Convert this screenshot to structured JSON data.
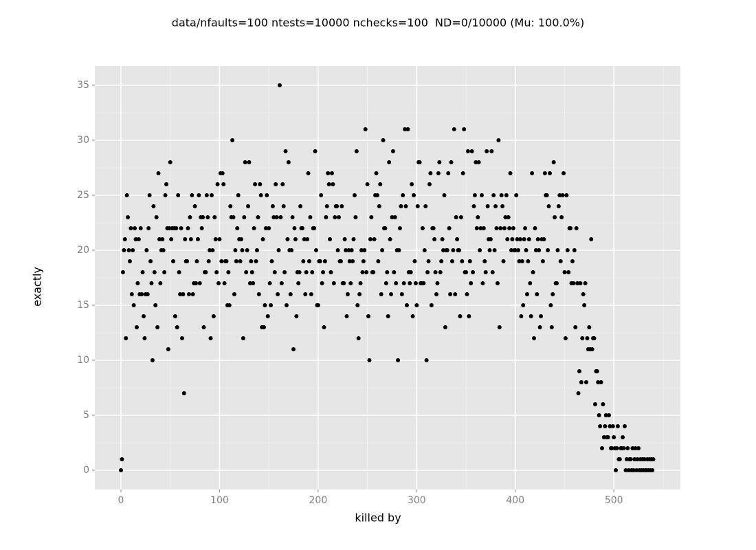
{
  "chart_data": {
    "type": "scatter",
    "title": "data/nfaults=100 ntests=10000 nchecks=100  ND=0/10000 (Mu: 100.0%)",
    "x_label": "killed by",
    "y_label": "exactly",
    "xlim": [
      -26.5,
      567.5
    ],
    "ylim": [
      -1.75,
      36.75
    ],
    "xticks": [
      0,
      100,
      200,
      300,
      400,
      500
    ],
    "yticks": [
      0,
      5,
      10,
      15,
      20,
      25,
      30,
      35
    ],
    "grid": true,
    "color": "#000000",
    "x": [
      0,
      1,
      2,
      3,
      4,
      5,
      6,
      7,
      8,
      9,
      10,
      11,
      12,
      13,
      14,
      15,
      16,
      17,
      18,
      19,
      20,
      21,
      22,
      23,
      24,
      25,
      26,
      27,
      28,
      29,
      30,
      31,
      32,
      33,
      34,
      35,
      36,
      37,
      38,
      39,
      40,
      41,
      42,
      43,
      44,
      45,
      46,
      47,
      48,
      49,
      50,
      51,
      52,
      53,
      54,
      55,
      56,
      57,
      58,
      59,
      60,
      61,
      62,
      63,
      64,
      65,
      66,
      67,
      68,
      69,
      70,
      71,
      72,
      73,
      74,
      75,
      76,
      77,
      78,
      79,
      80,
      81,
      82,
      83,
      84,
      85,
      86,
      87,
      88,
      89,
      90,
      91,
      92,
      93,
      94,
      95,
      96,
      97,
      98,
      99,
      100,
      101,
      102,
      103,
      104,
      105,
      106,
      107,
      108,
      109,
      110,
      111,
      112,
      113,
      114,
      115,
      116,
      117,
      118,
      119,
      120,
      121,
      122,
      123,
      124,
      125,
      126,
      127,
      128,
      129,
      130,
      131,
      132,
      133,
      134,
      135,
      136,
      137,
      138,
      139,
      140,
      141,
      142,
      143,
      144,
      145,
      146,
      147,
      148,
      149,
      150,
      151,
      152,
      153,
      154,
      155,
      156,
      157,
      158,
      159,
      160,
      161,
      162,
      163,
      164,
      165,
      166,
      167,
      168,
      169,
      170,
      171,
      172,
      173,
      174,
      175,
      176,
      177,
      178,
      179,
      180,
      181,
      182,
      183,
      184,
      185,
      186,
      187,
      188,
      189,
      190,
      191,
      192,
      193,
      194,
      195,
      196,
      197,
      198,
      199,
      200,
      201,
      202,
      203,
      204,
      205,
      206,
      207,
      208,
      209,
      210,
      211,
      212,
      213,
      214,
      215,
      216,
      217,
      218,
      219,
      220,
      221,
      222,
      223,
      224,
      225,
      226,
      227,
      228,
      229,
      230,
      231,
      232,
      233,
      234,
      235,
      236,
      237,
      238,
      239,
      240,
      241,
      242,
      243,
      244,
      245,
      246,
      247,
      248,
      249,
      250,
      251,
      252,
      253,
      254,
      255,
      256,
      257,
      258,
      259,
      260,
      261,
      262,
      263,
      264,
      265,
      266,
      267,
      268,
      269,
      270,
      271,
      272,
      273,
      274,
      275,
      276,
      277,
      278,
      279,
      280,
      281,
      282,
      283,
      284,
      285,
      286,
      287,
      288,
      289,
      290,
      291,
      292,
      293,
      294,
      295,
      296,
      297,
      298,
      299,
      300,
      301,
      302,
      303,
      304,
      305,
      306,
      307,
      308,
      309,
      310,
      311,
      312,
      313,
      314,
      315,
      316,
      317,
      318,
      319,
      320,
      321,
      322,
      323,
      324,
      325,
      326,
      327,
      328,
      329,
      330,
      331,
      332,
      333,
      334,
      335,
      336,
      337,
      338,
      339,
      340,
      341,
      342,
      343,
      344,
      345,
      346,
      347,
      348,
      349,
      350,
      351,
      352,
      353,
      354,
      355,
      356,
      357,
      358,
      359,
      360,
      361,
      362,
      363,
      364,
      365,
      366,
      367,
      368,
      369,
      370,
      371,
      372,
      373,
      374,
      375,
      376,
      377,
      378,
      379,
      380,
      381,
      382,
      383,
      384,
      385,
      386,
      387,
      388,
      389,
      390,
      391,
      392,
      393,
      394,
      395,
      396,
      397,
      398,
      399,
      400,
      401,
      402,
      403,
      404,
      405,
      406,
      407,
      408,
      409,
      410,
      411,
      412,
      413,
      414,
      415,
      416,
      417,
      418,
      419,
      420,
      421,
      422,
      423,
      424,
      425,
      426,
      427,
      428,
      429,
      430,
      431,
      432,
      433,
      434,
      435,
      436,
      437,
      438,
      439,
      440,
      441,
      442,
      443,
      444,
      445,
      446,
      447,
      448,
      449,
      450,
      451,
      452,
      453,
      454,
      455,
      456,
      457,
      458,
      459,
      460,
      461,
      462,
      463,
      464,
      465,
      466,
      467,
      468,
      469,
      470,
      471,
      472,
      473,
      474,
      475,
      476,
      477,
      478,
      479,
      480,
      481,
      482,
      483,
      484,
      485,
      486,
      487,
      488,
      489,
      490,
      491,
      492,
      493,
      494,
      495,
      496,
      497,
      498,
      499,
      500,
      501,
      502,
      503,
      504,
      505,
      506,
      507,
      508,
      509,
      510,
      511,
      512,
      513,
      514,
      515,
      516,
      517,
      518,
      519,
      520,
      521,
      522,
      523,
      524,
      525,
      526,
      527,
      528,
      529,
      530,
      531,
      532,
      533,
      534,
      535,
      536,
      537,
      538,
      539,
      540
    ],
    "values": [
      0,
      1,
      18,
      20,
      21,
      12,
      25,
      23,
      20,
      19,
      22,
      16,
      20,
      15,
      22,
      21,
      13,
      17,
      21,
      16,
      22,
      16,
      18,
      14,
      12,
      16,
      20,
      16,
      22,
      25,
      19,
      17,
      10,
      24,
      18,
      15,
      23,
      13,
      27,
      21,
      17,
      20,
      21,
      20,
      18,
      25,
      26,
      22,
      11,
      22,
      28,
      21,
      22,
      19,
      22,
      14,
      22,
      13,
      25,
      18,
      16,
      22,
      12,
      16,
      7,
      21,
      19,
      19,
      22,
      16,
      23,
      21,
      25,
      16,
      17,
      24,
      17,
      19,
      21,
      25,
      17,
      23,
      22,
      23,
      13,
      18,
      18,
      25,
      23,
      19,
      20,
      12,
      25,
      20,
      14,
      23,
      21,
      18,
      26,
      17,
      21,
      27,
      19,
      27,
      26,
      17,
      19,
      19,
      15,
      18,
      15,
      24,
      23,
      30,
      23,
      16,
      20,
      19,
      22,
      25,
      21,
      19,
      21,
      20,
      12,
      23,
      28,
      18,
      20,
      24,
      28,
      17,
      19,
      18,
      17,
      22,
      26,
      19,
      20,
      23,
      16,
      26,
      25,
      13,
      21,
      13,
      15,
      22,
      25,
      14,
      22,
      17,
      15,
      19,
      24,
      23,
      18,
      26,
      23,
      16,
      20,
      35,
      23,
      17,
      26,
      24,
      18,
      29,
      15,
      21,
      28,
      20,
      16,
      20,
      23,
      11,
      22,
      21,
      14,
      18,
      17,
      18,
      24,
      22,
      22,
      19,
      21,
      16,
      18,
      21,
      27,
      19,
      23,
      16,
      18,
      22,
      22,
      29,
      20,
      15,
      15,
      19,
      19,
      25,
      17,
      18,
      13,
      19,
      23,
      24,
      27,
      26,
      21,
      18,
      27,
      26,
      17,
      23,
      24,
      24,
      20,
      23,
      19,
      19,
      24,
      17,
      17,
      21,
      20,
      14,
      16,
      20,
      19,
      17,
      20,
      19,
      21,
      25,
      23,
      29,
      15,
      12,
      16,
      17,
      20,
      18,
      19,
      20,
      31,
      18,
      26,
      14,
      10,
      21,
      23,
      18,
      18,
      21,
      25,
      27,
      25,
      19,
      24,
      26,
      16,
      20,
      30,
      22,
      22,
      17,
      18,
      14,
      28,
      21,
      16,
      23,
      29,
      18,
      23,
      17,
      20,
      10,
      20,
      22,
      24,
      16,
      25,
      17,
      31,
      24,
      15,
      31,
      18,
      17,
      18,
      26,
      14,
      25,
      19,
      17,
      15,
      24,
      28,
      28,
      17,
      17,
      22,
      17,
      20,
      24,
      10,
      18,
      19,
      26,
      27,
      15,
      22,
      22,
      21,
      18,
      16,
      17,
      27,
      28,
      18,
      19,
      21,
      20,
      25,
      13,
      20,
      20,
      27,
      22,
      16,
      28,
      19,
      20,
      31,
      16,
      23,
      21,
      20,
      20,
      14,
      23,
      19,
      27,
      31,
      18,
      18,
      16,
      29,
      14,
      19,
      17,
      29,
      18,
      24,
      25,
      28,
      22,
      23,
      28,
      20,
      22,
      25,
      17,
      22,
      19,
      18,
      29,
      24,
      21,
      20,
      21,
      29,
      18,
      25,
      20,
      24,
      22,
      17,
      30,
      13,
      22,
      25,
      24,
      19,
      22,
      23,
      25,
      21,
      23,
      22,
      27,
      20,
      21,
      22,
      20,
      20,
      25,
      21,
      20,
      19,
      21,
      14,
      19,
      15,
      21,
      22,
      20,
      16,
      19,
      21,
      17,
      14,
      27,
      18,
      12,
      22,
      20,
      16,
      21,
      20,
      13,
      14,
      21,
      19,
      21,
      27,
      25,
      25,
      20,
      24,
      27,
      15,
      13,
      16,
      28,
      23,
      17,
      17,
      20,
      24,
      25,
      19,
      23,
      25,
      27,
      18,
      12,
      25,
      20,
      18,
      22,
      22,
      17,
      19,
      17,
      20,
      13,
      22,
      17,
      7,
      9,
      17,
      8,
      12,
      16,
      15,
      17,
      8,
      12,
      11,
      13,
      11,
      21,
      11,
      12,
      12,
      6,
      9,
      9,
      8,
      5,
      4,
      8,
      2,
      6,
      3,
      4,
      5,
      3,
      3,
      5,
      4,
      2,
      2,
      4,
      3,
      2,
      0,
      2,
      4,
      1,
      1,
      2,
      2,
      3,
      2,
      4,
      0,
      1,
      2,
      0,
      1,
      1,
      0,
      2,
      0,
      1,
      2,
      0,
      1,
      2,
      0,
      1,
      0,
      1,
      0,
      1,
      0,
      0,
      1,
      0,
      1,
      0,
      1,
      0,
      1
    ]
  }
}
